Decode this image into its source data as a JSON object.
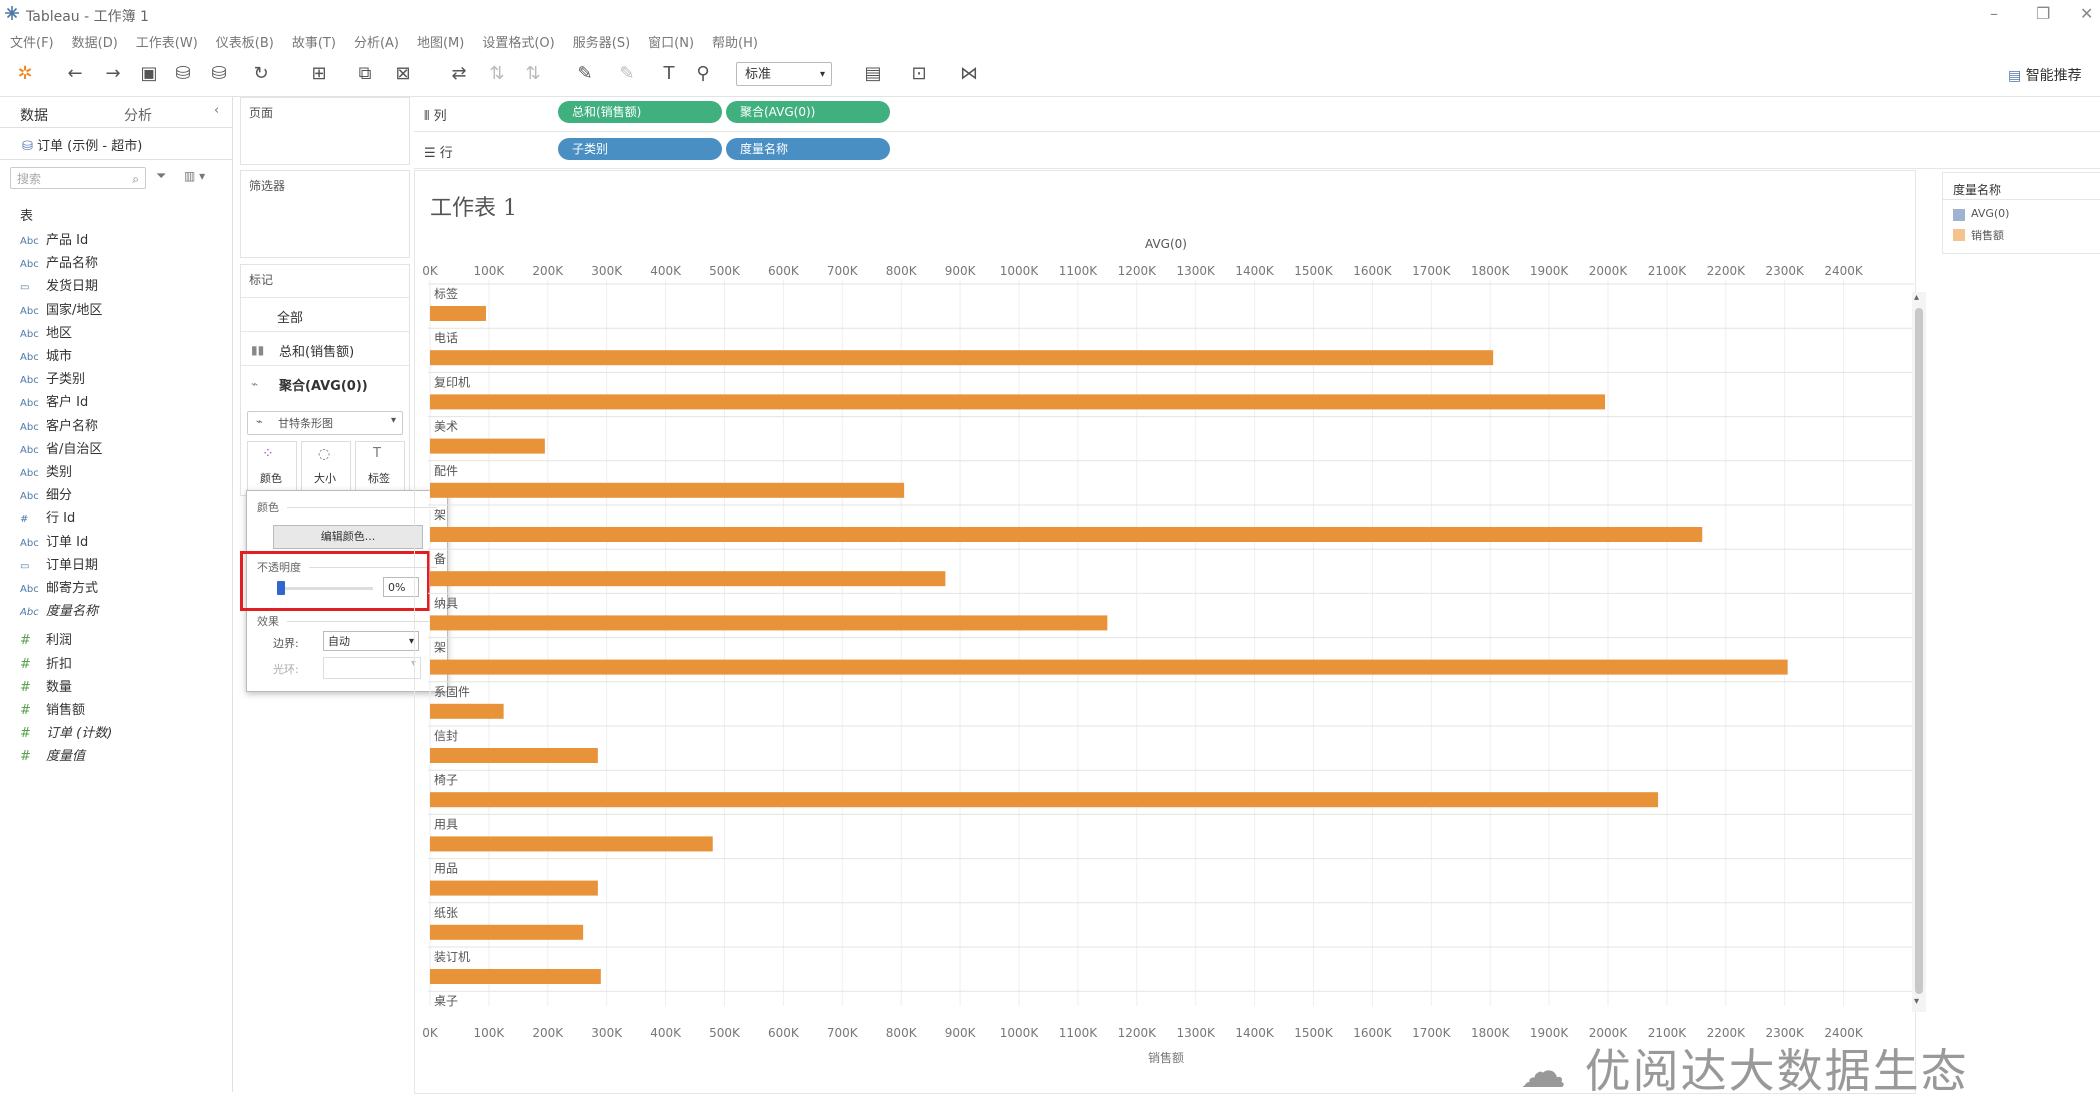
{
  "window": {
    "title": "Tableau - 工作簿 1"
  },
  "menu": [
    "文件(F)",
    "数据(D)",
    "工作表(W)",
    "仪表板(B)",
    "故事(T)",
    "分析(A)",
    "地图(M)",
    "设置格式(O)",
    "服务器(S)",
    "窗口(N)",
    "帮助(H)"
  ],
  "toolbar": {
    "style_select": "标准",
    "smart_label": "智能推荐"
  },
  "datapane": {
    "tab_data": "数据",
    "tab_analysis": "分析",
    "datasource": "订单 (示例 - 超市)",
    "search_placeholder": "搜索",
    "section": "表",
    "dimensions": [
      {
        "icon": "Abc",
        "label": "产品 Id"
      },
      {
        "icon": "Abc",
        "label": "产品名称"
      },
      {
        "icon": "▭",
        "label": "发货日期"
      },
      {
        "icon": "Abc",
        "label": "国家/地区"
      },
      {
        "icon": "Abc",
        "label": "地区"
      },
      {
        "icon": "Abc",
        "label": "城市"
      },
      {
        "icon": "Abc",
        "label": "子类别"
      },
      {
        "icon": "Abc",
        "label": "客户 Id"
      },
      {
        "icon": "Abc",
        "label": "客户名称"
      },
      {
        "icon": "Abc",
        "label": "省/自治区"
      },
      {
        "icon": "Abc",
        "label": "类别"
      },
      {
        "icon": "Abc",
        "label": "细分"
      },
      {
        "icon": "#",
        "label": "行 Id"
      },
      {
        "icon": "Abc",
        "label": "订单 Id"
      },
      {
        "icon": "▭",
        "label": "订单日期"
      },
      {
        "icon": "Abc",
        "label": "邮寄方式"
      },
      {
        "icon": "Abc",
        "label": "度量名称",
        "italic": true
      }
    ],
    "measures": [
      {
        "icon": "#",
        "label": "利润"
      },
      {
        "icon": "#",
        "label": "折扣"
      },
      {
        "icon": "#",
        "label": "数量"
      },
      {
        "icon": "#",
        "label": "销售额"
      },
      {
        "icon": "#",
        "label": "订单 (计数)",
        "italic": true
      },
      {
        "icon": "#",
        "label": "度量值",
        "italic": true
      }
    ]
  },
  "cards": {
    "pages": "页面",
    "filters": "筛选器",
    "marks": "标记",
    "marks_all": "全部",
    "marks_sum": "总和(销售额)",
    "marks_agg": "聚合(AVG(0))",
    "marktype": "甘特条形图",
    "btn_color": "颜色",
    "btn_size": "大小",
    "btn_label": "标签"
  },
  "popup": {
    "color_label": "颜色",
    "edit_colors": "编辑颜色...",
    "opacity_label": "不透明度",
    "opacity_value": "0%",
    "opacity_level": 0,
    "effects_label": "效果",
    "border_label": "边界:",
    "border_value": "自动",
    "halo_label": "光环:"
  },
  "shelves": {
    "columns_label": "列",
    "rows_label": "行",
    "col_pills": [
      "总和(销售额)",
      "聚合(AVG(0))"
    ],
    "row_pills": [
      "子类别",
      "度量名称"
    ]
  },
  "sheet": {
    "title": "工作表 1"
  },
  "legend": {
    "title": "度量名称",
    "items": [
      {
        "label": "AVG(0)",
        "color": "#9fb3d1"
      },
      {
        "label": "销售额",
        "color": "#f4c38e"
      }
    ]
  },
  "colors": {
    "bar": "#e8923a",
    "pill_green": "#3fb07e",
    "pill_blue": "#4a8fc4",
    "highlight": "#e02020"
  },
  "watermark": "优阅达大数据生态",
  "chart_data": {
    "type": "bar",
    "top_axis_title": "AVG(0)",
    "xlabel": "销售额",
    "xlim": [
      0,
      2500000
    ],
    "ticks": [
      "0K",
      "100K",
      "200K",
      "300K",
      "400K",
      "500K",
      "600K",
      "700K",
      "800K",
      "900K",
      "1000K",
      "1100K",
      "1200K",
      "1300K",
      "1400K",
      "1500K",
      "1600K",
      "1700K",
      "1800K",
      "1900K",
      "2000K",
      "2100K",
      "2200K",
      "2300K",
      "2400K"
    ],
    "categories": [
      "标签",
      "电话",
      "复印机",
      "美术",
      "配件",
      "书架",
      "设备",
      "收纳具",
      "器具",
      "系固件",
      "信封",
      "椅子",
      "用具",
      "用品",
      "纸张",
      "装订机",
      "桌子"
    ],
    "visible_labels": [
      "标签",
      "电话",
      "复印机",
      "美术",
      "配件",
      "架",
      "备",
      "纳具",
      "架",
      "系固件",
      "信封",
      "椅子",
      "用具",
      "用品",
      "纸张",
      "装订机",
      "桌子"
    ],
    "values": [
      95000,
      1805000,
      1995000,
      195000,
      805000,
      2160000,
      875000,
      1150000,
      2305000,
      125000,
      285000,
      2085000,
      480000,
      285000,
      260000,
      290000,
      null
    ],
    "grid": true
  }
}
